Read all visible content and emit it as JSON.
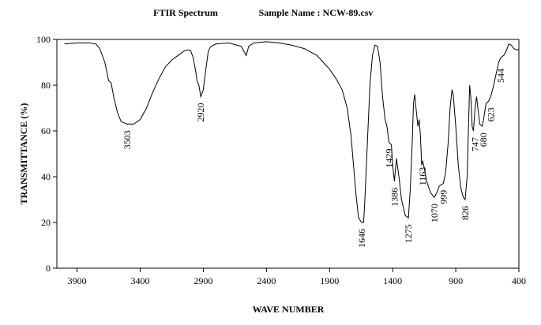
{
  "chart_data": {
    "type": "line",
    "title": "FTIR Spectrum",
    "subtitle": "Sample Name :  NCW-89.csv",
    "x_label": "WAVE NUMBER",
    "y_label": "TRANSMITTANCE (%)",
    "xlim": [
      4060,
      400
    ],
    "ylim": [
      0,
      100
    ],
    "xticks": [
      3900,
      3400,
      2900,
      2400,
      1900,
      1400,
      900,
      400
    ],
    "yticks": [
      0,
      20,
      40,
      60,
      80,
      100
    ],
    "series": [
      {
        "color": "#000000",
        "x": [
          4000,
          3900,
          3800,
          3750,
          3720,
          3680,
          3650,
          3630,
          3610,
          3580,
          3550,
          3503,
          3450,
          3400,
          3350,
          3300,
          3250,
          3200,
          3150,
          3100,
          3050,
          3020,
          3000,
          2980,
          2960,
          2950,
          2935,
          2920,
          2900,
          2880,
          2860,
          2840,
          2800,
          2700,
          2600,
          2560,
          2540,
          2500,
          2400,
          2300,
          2200,
          2100,
          2000,
          1950,
          1900,
          1850,
          1800,
          1760,
          1730,
          1710,
          1690,
          1670,
          1646,
          1630,
          1620,
          1600,
          1580,
          1560,
          1540,
          1520,
          1500,
          1480,
          1460,
          1445,
          1429,
          1410,
          1400,
          1386,
          1370,
          1350,
          1330,
          1300,
          1275,
          1260,
          1245,
          1235,
          1225,
          1215,
          1200,
          1190,
          1180,
          1170,
          1163,
          1150,
          1130,
          1100,
          1070,
          1050,
          1030,
          999,
          980,
          960,
          945,
          930,
          920,
          900,
          880,
          860,
          840,
          826,
          810,
          800,
          790,
          780,
          770,
          760,
          747,
          735,
          725,
          710,
          690,
          680,
          660,
          640,
          623,
          600,
          580,
          560,
          544,
          520,
          500,
          480,
          460,
          440,
          420,
          400
        ],
        "values": [
          98,
          98.5,
          98.5,
          98,
          96,
          90,
          82,
          81,
          75,
          68,
          64,
          63,
          63,
          65,
          70,
          77,
          83,
          88,
          91,
          93,
          95,
          95.5,
          95,
          92,
          86,
          82,
          80,
          75,
          78,
          87,
          95,
          97,
          98,
          98.5,
          97,
          93,
          97,
          98.5,
          99,
          98.5,
          97.5,
          96,
          93,
          90,
          87,
          83,
          78,
          70,
          58,
          45,
          32,
          22,
          20,
          20,
          30,
          55,
          80,
          93,
          97.5,
          97,
          90,
          75,
          65,
          62,
          55,
          54,
          45,
          38,
          48,
          40,
          30,
          23,
          22,
          35,
          55,
          72,
          76,
          70,
          62,
          65,
          58,
          45,
          47,
          44,
          38,
          33,
          31,
          33,
          36,
          37,
          42,
          55,
          70,
          78,
          76,
          62,
          45,
          35,
          31,
          30,
          40,
          60,
          80,
          74,
          62,
          60,
          70,
          75,
          70,
          63,
          62,
          65,
          72,
          73,
          75,
          80,
          85,
          90,
          92,
          93,
          95,
          98,
          97.5,
          96,
          95.5,
          95.5
        ]
      }
    ],
    "annotations": [
      {
        "x": 3503,
        "y": 63
      },
      {
        "x": 2920,
        "y": 75
      },
      {
        "x": 1646,
        "y": 20
      },
      {
        "x": 1429,
        "y": 55
      },
      {
        "x": 1386,
        "y": 38
      },
      {
        "x": 1275,
        "y": 22
      },
      {
        "x": 1163,
        "y": 47
      },
      {
        "x": 1070,
        "y": 31
      },
      {
        "x": 999,
        "y": 37
      },
      {
        "x": 826,
        "y": 30
      },
      {
        "x": 747,
        "y": 60
      },
      {
        "x": 680,
        "y": 62
      },
      {
        "x": 623,
        "y": 73
      },
      {
        "x": 544,
        "y": 90
      }
    ]
  }
}
